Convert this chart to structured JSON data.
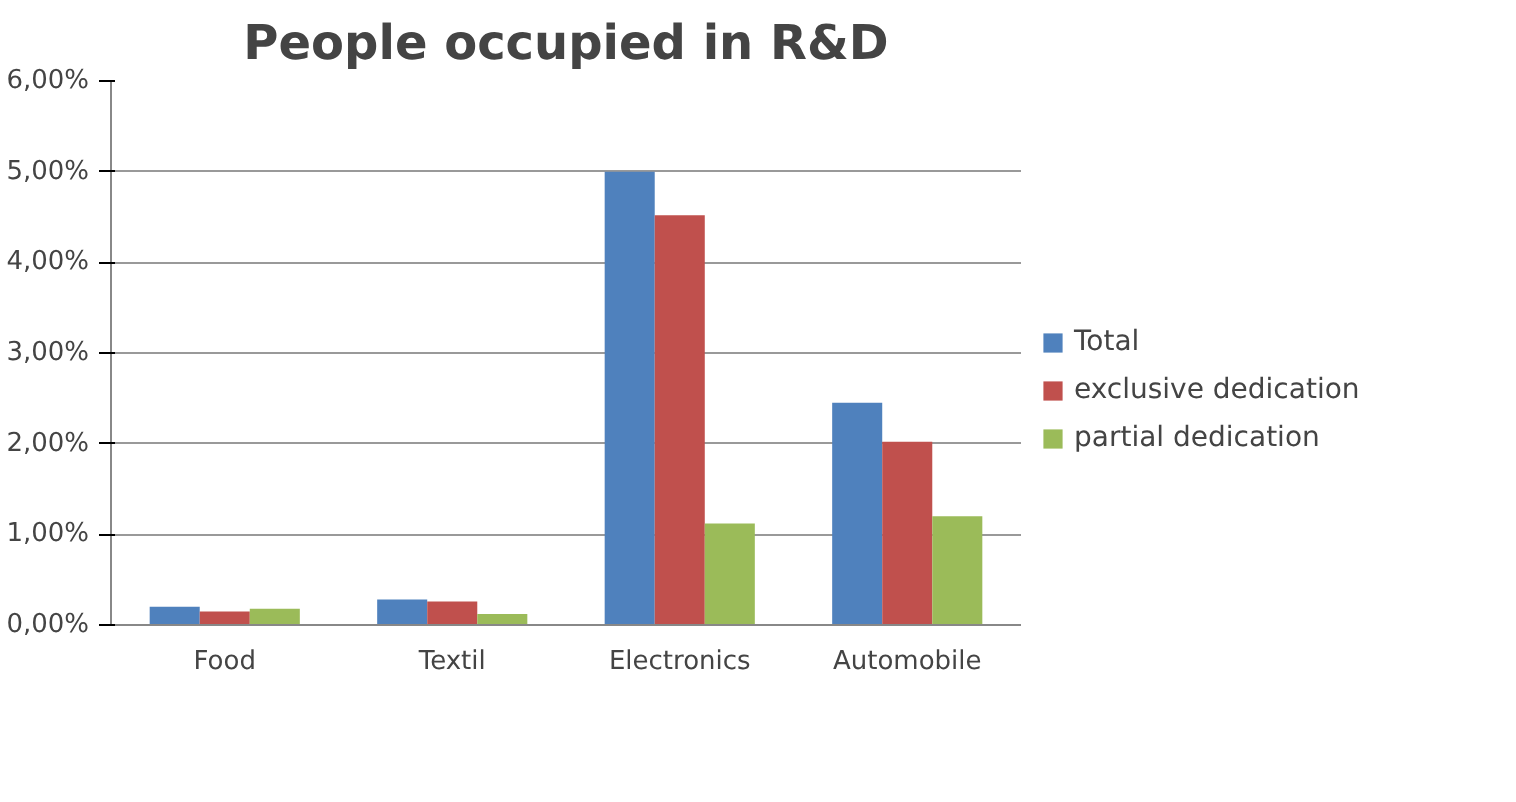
{
  "chart_data": {
    "type": "bar",
    "title": "People occupied in R&D",
    "categories": [
      "Food",
      "Textil",
      "Electronics",
      "Automobile"
    ],
    "series": [
      {
        "name": "Total",
        "color": "#4f81bd",
        "values": [
          0.2,
          0.28,
          5.0,
          2.45
        ]
      },
      {
        "name": "exclusive dedication",
        "color": "#c0504d",
        "values": [
          0.15,
          0.26,
          4.52,
          2.02
        ]
      },
      {
        "name": "partial dedication",
        "color": "#9bbb59",
        "values": [
          0.18,
          0.12,
          1.12,
          1.2
        ]
      }
    ],
    "ylim": [
      0,
      6
    ],
    "yticks": [
      {
        "value": 0,
        "label": "0,00%"
      },
      {
        "value": 1,
        "label": "1,00%"
      },
      {
        "value": 2,
        "label": "2,00%"
      },
      {
        "value": 3,
        "label": "3,00%"
      },
      {
        "value": 4,
        "label": "4,00%"
      },
      {
        "value": 5,
        "label": "5,00%"
      },
      {
        "value": 6,
        "label": "6,00%"
      }
    ],
    "grid": "y",
    "legend": "right"
  }
}
